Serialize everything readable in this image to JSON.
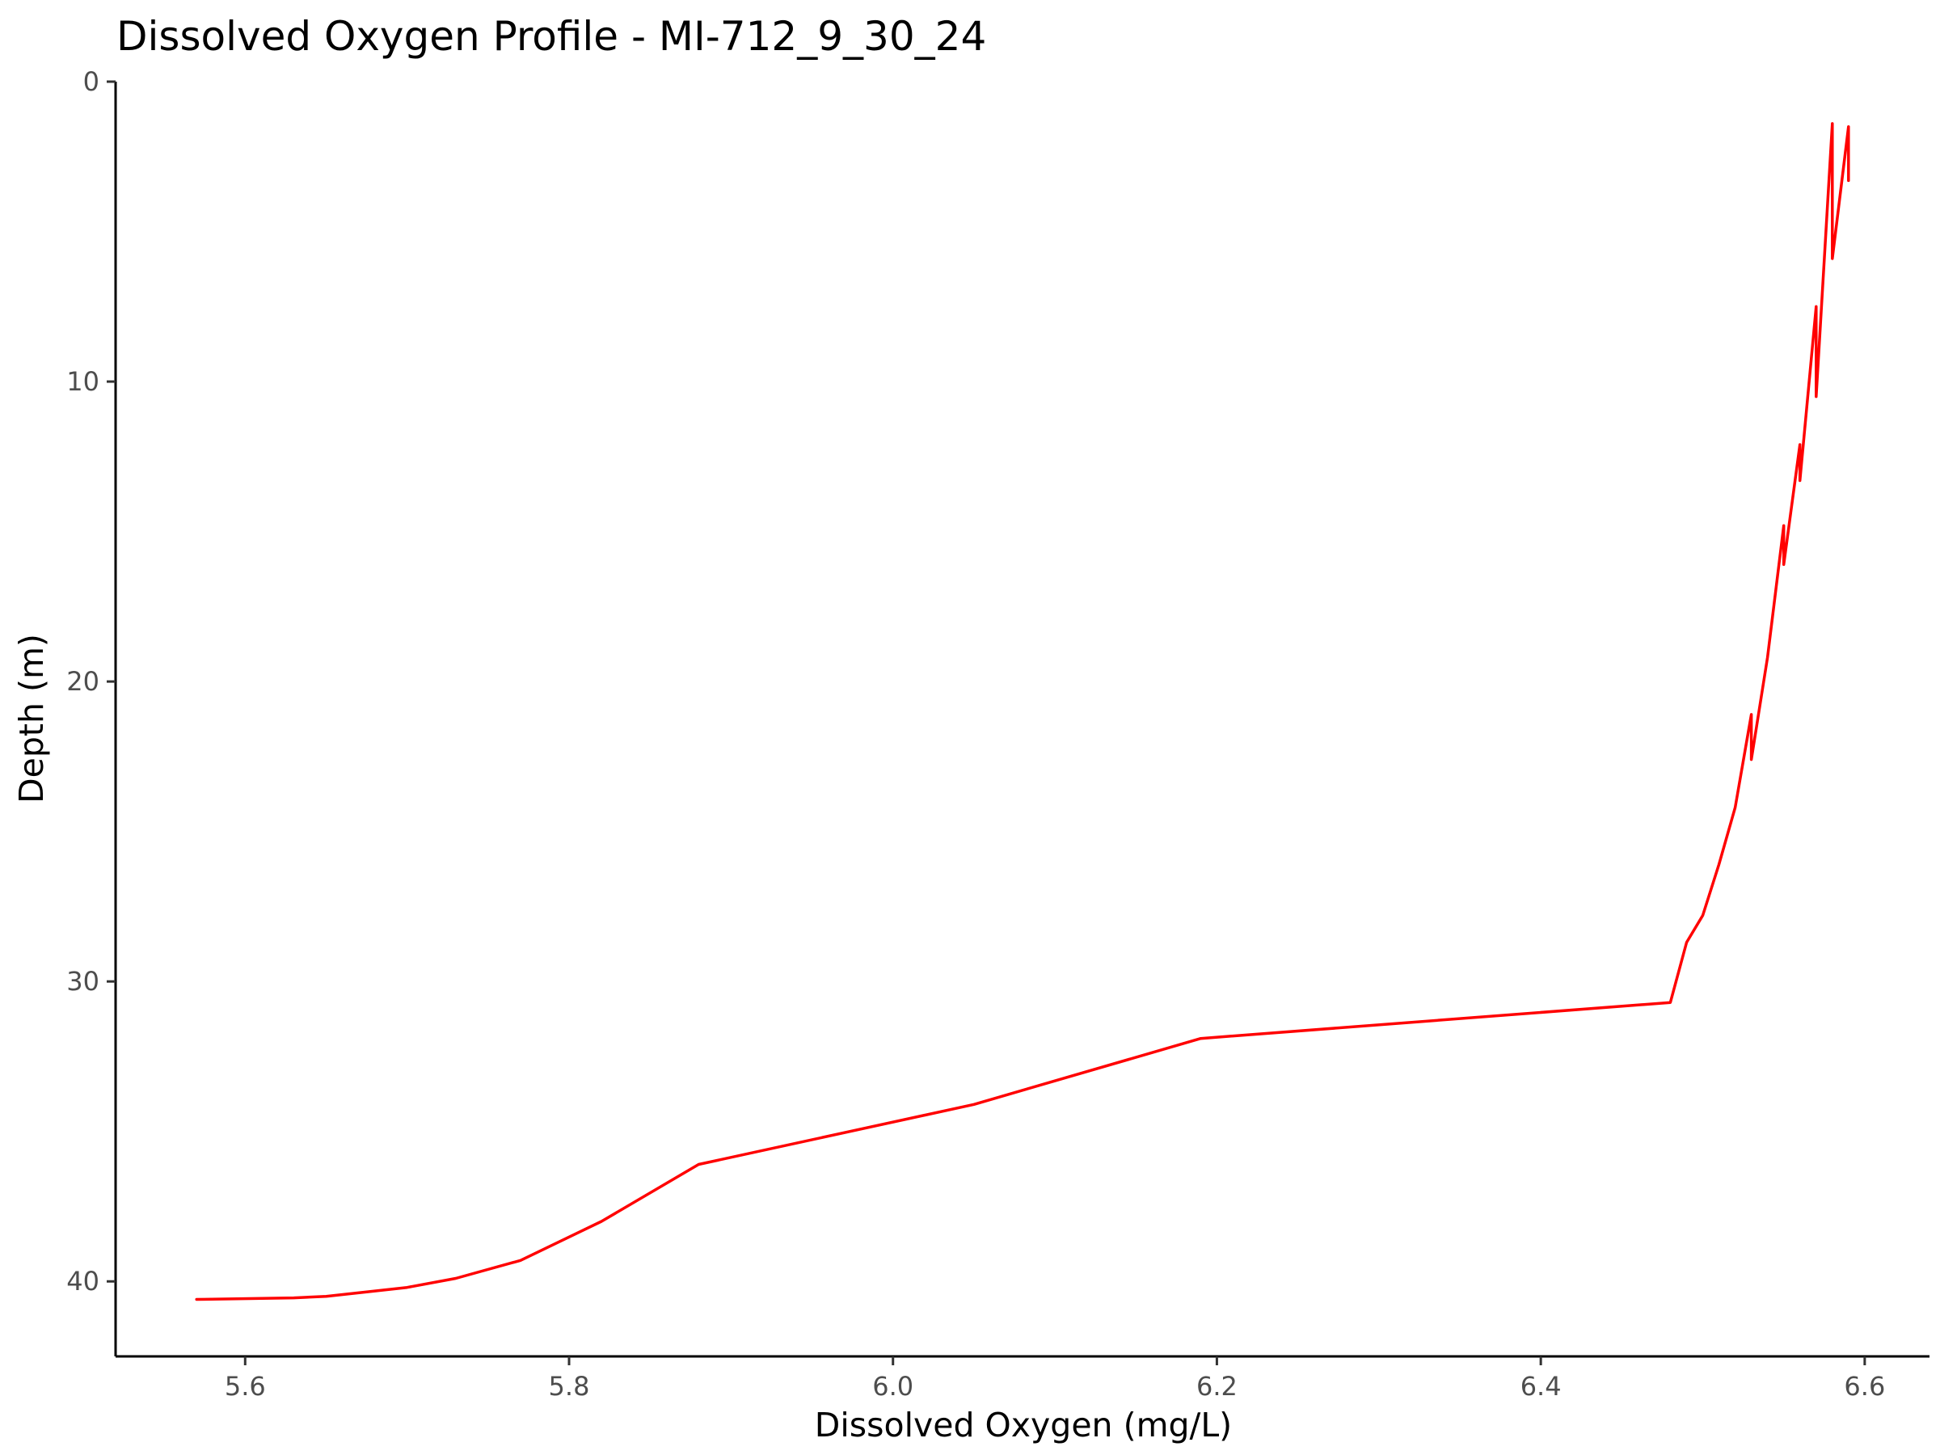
{
  "chart_data": {
    "type": "line",
    "title": "Dissolved Oxygen Profile - MI-712_9_30_24",
    "xlabel": "Dissolved Oxygen (mg/L)",
    "ylabel": "Depth (m)",
    "xlim": [
      5.52,
      6.64
    ],
    "ylim": [
      0,
      42.5
    ],
    "y_reversed": true,
    "x_ticks": [
      5.6,
      5.8,
      6.0,
      6.2,
      6.4,
      6.6
    ],
    "x_tick_labels": [
      "5.6",
      "5.8",
      "6.0",
      "6.2",
      "6.4",
      "6.6"
    ],
    "y_ticks": [
      0,
      10,
      20,
      30,
      40
    ],
    "y_tick_labels": [
      "0",
      "10",
      "20",
      "30",
      "40"
    ],
    "grid": false,
    "legend": "none",
    "line_color": "#ff0000",
    "series": [
      {
        "x": [
          6.59,
          6.59,
          6.58,
          6.58,
          6.57,
          6.57,
          6.56,
          6.56,
          6.55,
          6.55,
          6.54,
          6.53,
          6.53,
          6.52,
          6.51,
          6.5,
          6.49,
          6.48,
          6.19,
          6.05,
          5.88,
          5.82,
          5.77,
          5.73,
          5.7,
          5.65,
          5.63,
          5.57
        ],
        "y": [
          3.3,
          1.5,
          5.9,
          1.4,
          10.5,
          7.5,
          13.3,
          12.1,
          16.1,
          14.8,
          19.2,
          22.6,
          21.1,
          24.2,
          26.1,
          27.8,
          28.7,
          30.7,
          31.9,
          34.1,
          36.1,
          38.0,
          39.3,
          39.9,
          40.2,
          40.5,
          40.55,
          40.6
        ]
      }
    ]
  }
}
